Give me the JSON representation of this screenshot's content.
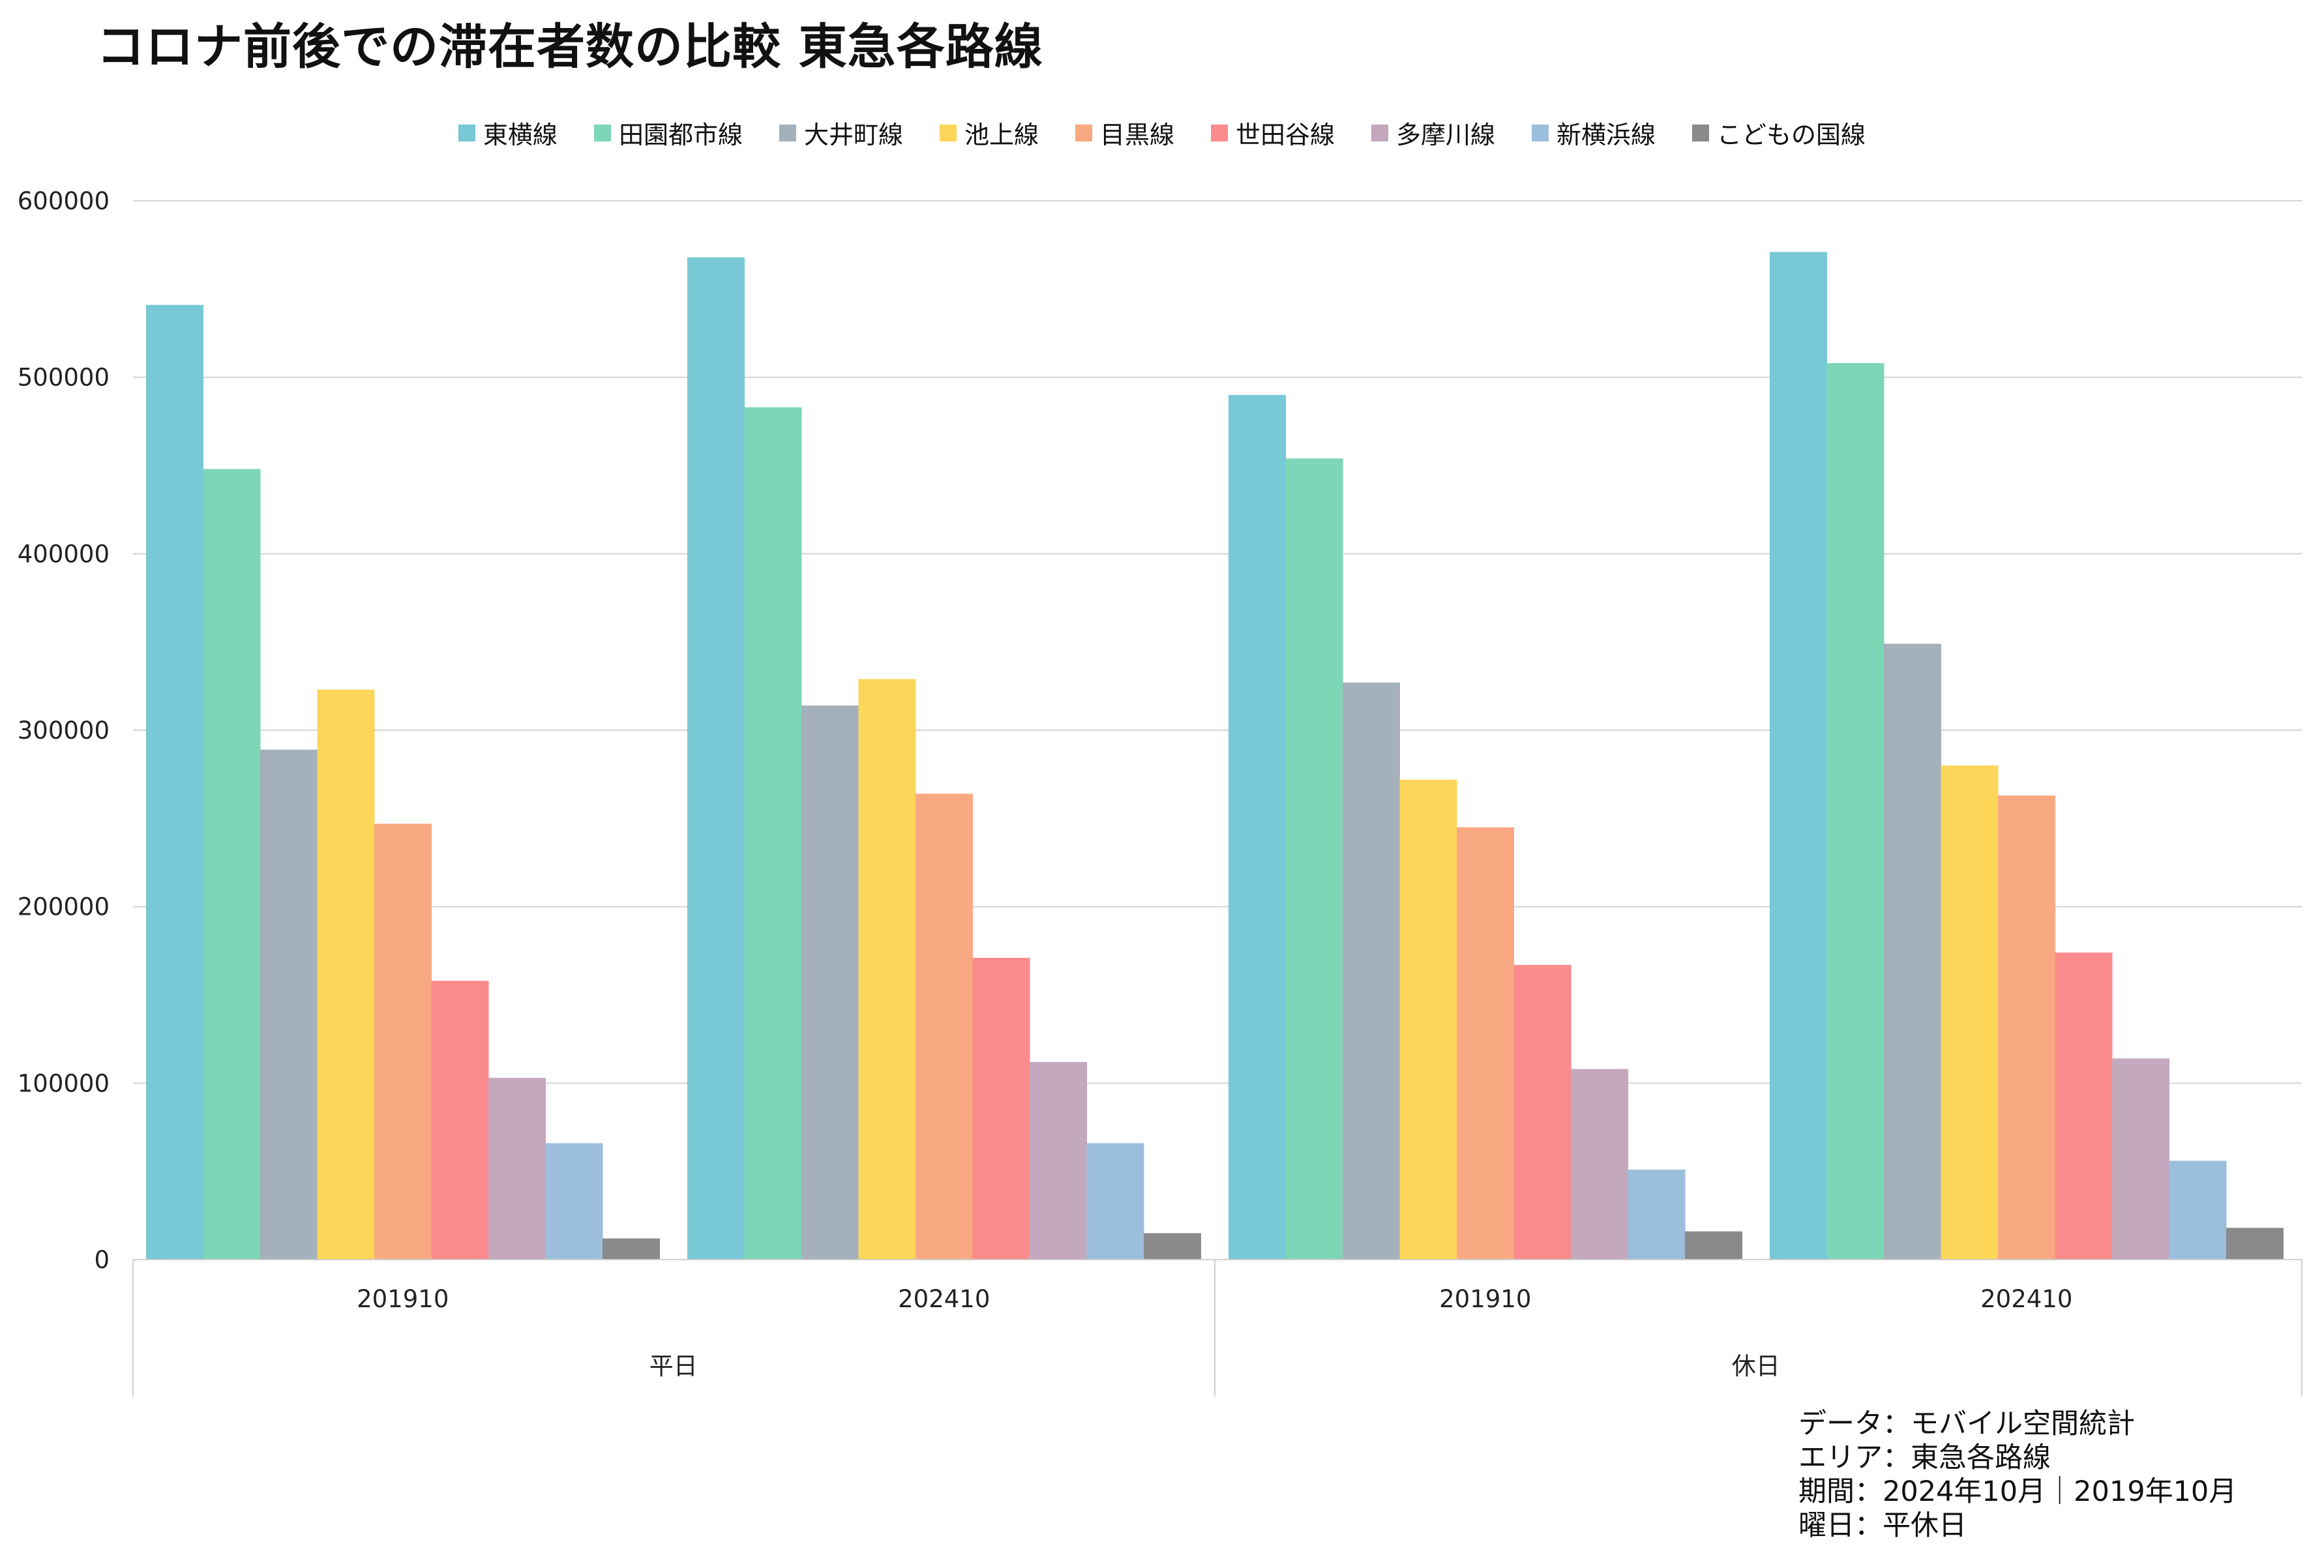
{
  "chart_data": {
    "type": "bar",
    "title": "コロナ前後での滞在者数の比較 東急各路線",
    "xlabel": "",
    "ylabel": "",
    "ylim": [
      0,
      600000
    ],
    "yticks": [
      "0",
      "100000",
      "200000",
      "300000",
      "400000",
      "500000",
      "600000"
    ],
    "grid": true,
    "legend_position": "top",
    "groups": [
      {
        "label": "平日",
        "categories": [
          "201910",
          "202410"
        ]
      },
      {
        "label": "休日",
        "categories": [
          "201910",
          "202410"
        ]
      }
    ],
    "categories": [
      "201910",
      "202410",
      "201910",
      "202410"
    ],
    "series": [
      {
        "name": "東横線",
        "color": "#78c8d6",
        "values": [
          541000,
          568000,
          490000,
          571000
        ]
      },
      {
        "name": "田園都市線",
        "color": "#7dd6b5",
        "values": [
          448000,
          483000,
          454000,
          508000
        ]
      },
      {
        "name": "大井町線",
        "color": "#a4b1bb",
        "values": [
          289000,
          314000,
          327000,
          349000
        ]
      },
      {
        "name": "池上線",
        "color": "#fdd659",
        "values": [
          323000,
          329000,
          272000,
          280000
        ]
      },
      {
        "name": "目黒線",
        "color": "#f9a982",
        "values": [
          247000,
          264000,
          245000,
          263000
        ]
      },
      {
        "name": "世田谷線",
        "color": "#fb8a8c",
        "values": [
          158000,
          171000,
          167000,
          174000
        ]
      },
      {
        "name": "多摩川線",
        "color": "#c4a8bd",
        "values": [
          103000,
          112000,
          108000,
          114000
        ]
      },
      {
        "name": "新横浜線",
        "color": "#9cbedd",
        "values": [
          66000,
          66000,
          51000,
          56000
        ]
      },
      {
        "name": "こどもの国線",
        "color": "#8a8a8a",
        "values": [
          12000,
          15000,
          16000,
          18000
        ]
      }
    ]
  },
  "notes": [
    "データ：モバイル空間統計",
    "エリア：東急各路線",
    "期間：2024年10月｜2019年10月",
    "曜日：平休日"
  ]
}
